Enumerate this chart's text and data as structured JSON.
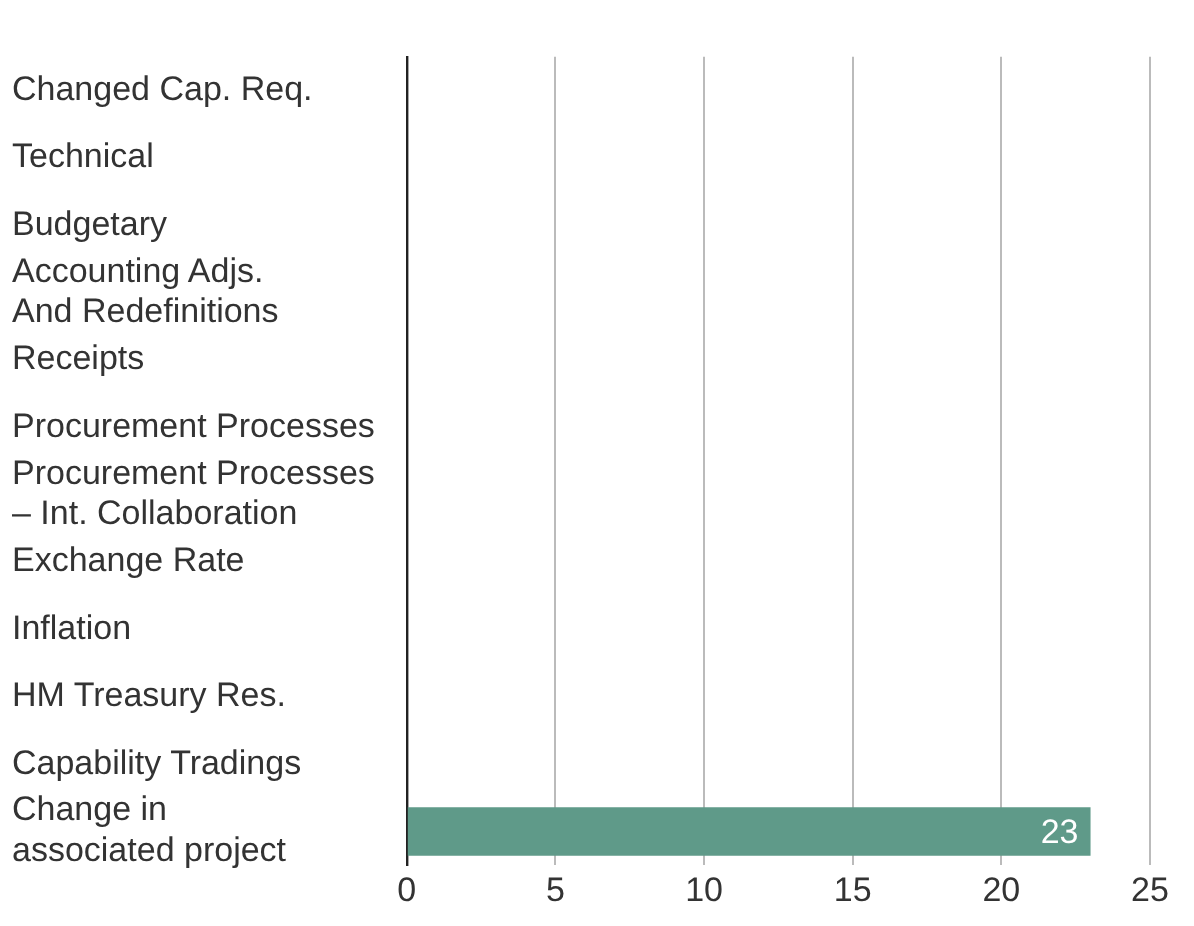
{
  "chart_data": {
    "type": "bar",
    "orientation": "horizontal",
    "categories": [
      "Changed Cap. Req.",
      "Technical",
      "Budgetary",
      "Accounting Adjs.\nAnd Redefinitions",
      "Receipts",
      "Procurement Processes",
      "Procurement Processes\n– Int. Collaboration",
      "Exchange Rate",
      "Inflation",
      "HM Treasury Res.",
      "Capability Tradings",
      "Change in\nassociated project"
    ],
    "values": [
      0,
      0,
      0,
      0,
      0,
      0,
      0,
      0,
      0,
      0,
      0,
      23
    ],
    "value_labels": [
      null,
      null,
      null,
      null,
      null,
      null,
      null,
      null,
      null,
      null,
      null,
      "23"
    ],
    "color": "#5f9a89",
    "xlim": [
      0,
      25
    ],
    "xticks": [
      0,
      5,
      10,
      15,
      20,
      25
    ],
    "grid": "x",
    "legend": false
  }
}
